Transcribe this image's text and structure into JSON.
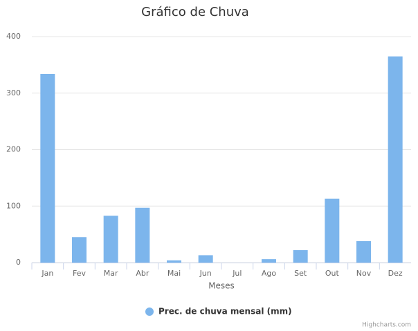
{
  "chart_data": {
    "type": "column",
    "title": "Gráfico de Chuva",
    "x_label": "Meses",
    "categories": [
      "Jan",
      "Fev",
      "Mar",
      "Abr",
      "Mai",
      "Jun",
      "Jul",
      "Ago",
      "Set",
      "Out",
      "Nov",
      "Dez"
    ],
    "series": [
      {
        "name": "Prec. de chuva mensal (mm)",
        "color": "#7cb5ec",
        "values": [
          334,
          45,
          83,
          97,
          4,
          13,
          0,
          6,
          22,
          113,
          38,
          365
        ]
      }
    ],
    "ylim": [
      0,
      400
    ],
    "yticks": [
      0,
      100,
      200,
      300,
      400
    ],
    "grid": true,
    "legend": "bottom",
    "credits": "Highcharts.com"
  }
}
